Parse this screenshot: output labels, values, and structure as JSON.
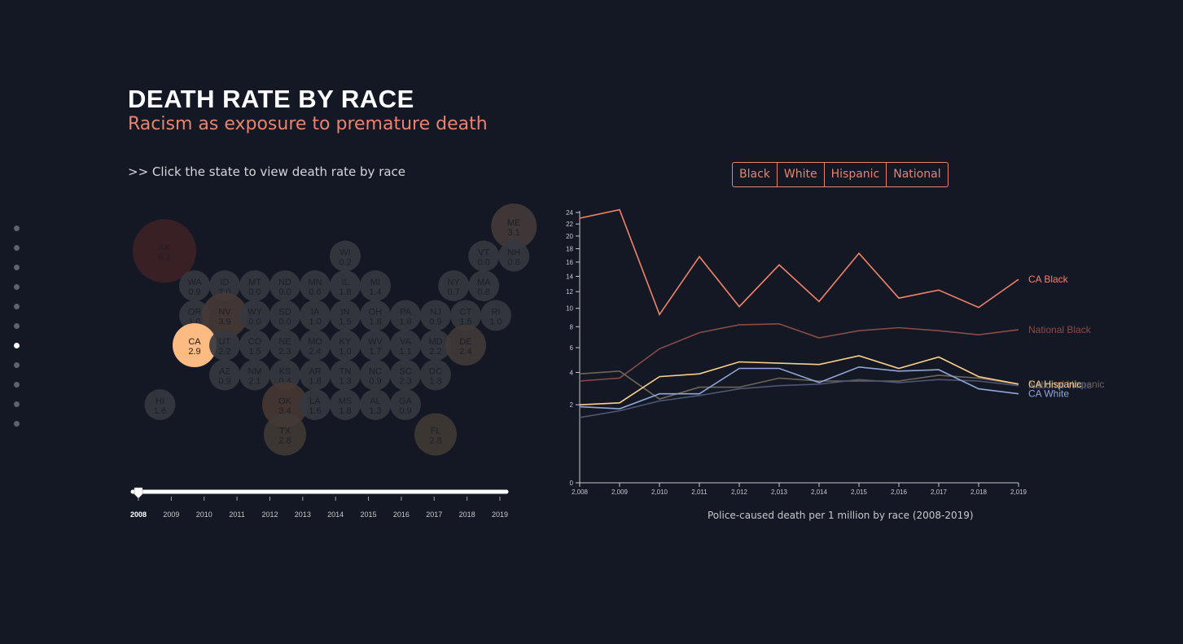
{
  "header": {
    "title": "DEATH RATE BY RACE",
    "subtitle": "Racism as exposure to premature death",
    "instruction": ">> Click the state to view death rate by race"
  },
  "nav": {
    "dot_count": 11,
    "active_index": 6
  },
  "tabs": [
    {
      "label": "Black"
    },
    {
      "label": "White"
    },
    {
      "label": "Hispanic"
    },
    {
      "label": "National"
    }
  ],
  "map": {
    "selected_state": "CA",
    "selected_color": "#fdbb84",
    "states": [
      {
        "abbr": "AK",
        "value": "6.1",
        "col": 1,
        "row": 0.83
      },
      {
        "abbr": "ME",
        "value": "3.1",
        "col": 12.6,
        "row": 0
      },
      {
        "abbr": "WI",
        "value": "0.2",
        "col": 7,
        "row": 1
      },
      {
        "abbr": "VT",
        "value": "0.0",
        "col": 11.6,
        "row": 1
      },
      {
        "abbr": "NH",
        "value": "0.8",
        "col": 12.6,
        "row": 1
      },
      {
        "abbr": "WA",
        "value": "0.9",
        "col": 2,
        "row": 2
      },
      {
        "abbr": "ID",
        "value": "2.0",
        "col": 3,
        "row": 2
      },
      {
        "abbr": "MT",
        "value": "0.0",
        "col": 4,
        "row": 2
      },
      {
        "abbr": "ND",
        "value": "0.0",
        "col": 5,
        "row": 2
      },
      {
        "abbr": "MN",
        "value": "0.6",
        "col": 6,
        "row": 2
      },
      {
        "abbr": "IL",
        "value": "1.8",
        "col": 7,
        "row": 2
      },
      {
        "abbr": "MI",
        "value": "1.4",
        "col": 8,
        "row": 2
      },
      {
        "abbr": "NY",
        "value": "0.7",
        "col": 10.6,
        "row": 2
      },
      {
        "abbr": "MA",
        "value": "0.8",
        "col": 11.6,
        "row": 2
      },
      {
        "abbr": "OR",
        "value": "1.0",
        "col": 2,
        "row": 3
      },
      {
        "abbr": "NV",
        "value": "3.9",
        "col": 3,
        "row": 3
      },
      {
        "abbr": "WY",
        "value": "0.0",
        "col": 4,
        "row": 3
      },
      {
        "abbr": "SD",
        "value": "0.0",
        "col": 5,
        "row": 3
      },
      {
        "abbr": "IA",
        "value": "1.0",
        "col": 6,
        "row": 3
      },
      {
        "abbr": "IN",
        "value": "1.5",
        "col": 7,
        "row": 3
      },
      {
        "abbr": "OH",
        "value": "1.8",
        "col": 8,
        "row": 3
      },
      {
        "abbr": "PA",
        "value": "1.6",
        "col": 9,
        "row": 3
      },
      {
        "abbr": "NJ",
        "value": "0.9",
        "col": 10,
        "row": 3
      },
      {
        "abbr": "CT",
        "value": "1.5",
        "col": 11,
        "row": 3
      },
      {
        "abbr": "RI",
        "value": "1.0",
        "col": 12,
        "row": 3
      },
      {
        "abbr": "CA",
        "value": "2.9",
        "col": 2,
        "row": 4
      },
      {
        "abbr": "UT",
        "value": "2.2",
        "col": 3,
        "row": 4
      },
      {
        "abbr": "CO",
        "value": "1.5",
        "col": 4,
        "row": 4
      },
      {
        "abbr": "NE",
        "value": "2.3",
        "col": 5,
        "row": 4
      },
      {
        "abbr": "MO",
        "value": "2.4",
        "col": 6,
        "row": 4
      },
      {
        "abbr": "KY",
        "value": "1.0",
        "col": 7,
        "row": 4
      },
      {
        "abbr": "WV",
        "value": "1.7",
        "col": 8,
        "row": 4
      },
      {
        "abbr": "VA",
        "value": "1.1",
        "col": 9,
        "row": 4
      },
      {
        "abbr": "MD",
        "value": "2.2",
        "col": 10,
        "row": 4
      },
      {
        "abbr": "DE",
        "value": "2.4",
        "col": 11,
        "row": 4
      },
      {
        "abbr": "AZ",
        "value": "0.9",
        "col": 3,
        "row": 5
      },
      {
        "abbr": "NM",
        "value": "2.1",
        "col": 4,
        "row": 5
      },
      {
        "abbr": "KS",
        "value": "0.4",
        "col": 5,
        "row": 5
      },
      {
        "abbr": "AR",
        "value": "1.8",
        "col": 6,
        "row": 5
      },
      {
        "abbr": "TN",
        "value": "1.3",
        "col": 7,
        "row": 5
      },
      {
        "abbr": "NC",
        "value": "0.9",
        "col": 8,
        "row": 5
      },
      {
        "abbr": "SC",
        "value": "2.3",
        "col": 9,
        "row": 5
      },
      {
        "abbr": "DC",
        "value": "1.8",
        "col": 10,
        "row": 5
      },
      {
        "abbr": "HI",
        "value": "1.6",
        "col": 0.85,
        "row": 6
      },
      {
        "abbr": "OK",
        "value": "3.4",
        "col": 5,
        "row": 6
      },
      {
        "abbr": "LA",
        "value": "1.6",
        "col": 6,
        "row": 6
      },
      {
        "abbr": "MS",
        "value": "1.8",
        "col": 7,
        "row": 6
      },
      {
        "abbr": "AL",
        "value": "1.3",
        "col": 8,
        "row": 6
      },
      {
        "abbr": "GA",
        "value": "0.9",
        "col": 9,
        "row": 6
      },
      {
        "abbr": "TX",
        "value": "2.8",
        "col": 5,
        "row": 7
      },
      {
        "abbr": "FL",
        "value": "2.8",
        "col": 10,
        "row": 7
      }
    ]
  },
  "slider": {
    "years": [
      "2008",
      "2009",
      "2010",
      "2011",
      "2012",
      "2013",
      "2014",
      "2015",
      "2016",
      "2017",
      "2018",
      "2019"
    ],
    "selected": "2008"
  },
  "chart_data": {
    "type": "line",
    "title": "",
    "xlabel": "Police-caused death per 1 million by race (2008-2019)",
    "ylabel": "",
    "x": [
      "2,008",
      "2,009",
      "2,010",
      "2,011",
      "2,012",
      "2,013",
      "2,014",
      "2,015",
      "2,016",
      "2,017",
      "2,018",
      "2,019"
    ],
    "y_ticks": [
      "0",
      "2",
      "4",
      "6",
      "8",
      "10",
      "12",
      "14",
      "16",
      "18",
      "20",
      "22",
      "24"
    ],
    "ylim": [
      0,
      24
    ],
    "y_scale": "sqrt",
    "grid": false,
    "series": [
      {
        "name": "CA Black",
        "color": "#f08367",
        "opacity": 1,
        "values": [
          23,
          24.5,
          9.3,
          16.8,
          10.2,
          15.6,
          10.8,
          17.3,
          11.2,
          12.2,
          10.1,
          13.6
        ]
      },
      {
        "name": "National Black",
        "color": "#8a4c47",
        "opacity": 1,
        "values": [
          3.4,
          3.6,
          5.9,
          7.4,
          8.2,
          8.3,
          6.9,
          7.6,
          7.9,
          7.6,
          7.2,
          7.7
        ]
      },
      {
        "name": "National Hispanic",
        "color": "#6e6558",
        "opacity": 1,
        "values": [
          3.9,
          4.1,
          2.3,
          3.0,
          3.0,
          3.6,
          3.4,
          3.4,
          3.4,
          3.8,
          3.6,
          3.2
        ]
      },
      {
        "name": "National White",
        "color": "#4e5672",
        "opacity": 1,
        "values": [
          1.4,
          1.7,
          2.2,
          2.5,
          2.9,
          3.1,
          3.2,
          3.5,
          3.3,
          3.5,
          3.4,
          3.1
        ]
      },
      {
        "name": "CA Hispanic",
        "color": "#fdd08a",
        "opacity": 1,
        "values": [
          2.0,
          2.1,
          3.7,
          3.9,
          4.8,
          4.7,
          4.6,
          5.3,
          4.3,
          5.2,
          3.7,
          3.2
        ]
      },
      {
        "name": "CA White",
        "color": "#8fa6d6",
        "opacity": 1,
        "values": [
          1.9,
          1.8,
          2.6,
          2.6,
          4.3,
          4.3,
          3.3,
          4.4,
          4.1,
          4.2,
          2.9,
          2.6
        ]
      }
    ],
    "labels": [
      {
        "text": "CA Black",
        "series": "CA Black"
      },
      {
        "text": "National Black",
        "series": "National Black"
      },
      {
        "text": "National Hispanic",
        "series": "National Hispanic"
      },
      {
        "text": "National White",
        "series": "National White"
      },
      {
        "text": "CA Hispanic",
        "series": "CA Hispanic"
      },
      {
        "text": "CA White",
        "series": "CA White"
      }
    ]
  }
}
